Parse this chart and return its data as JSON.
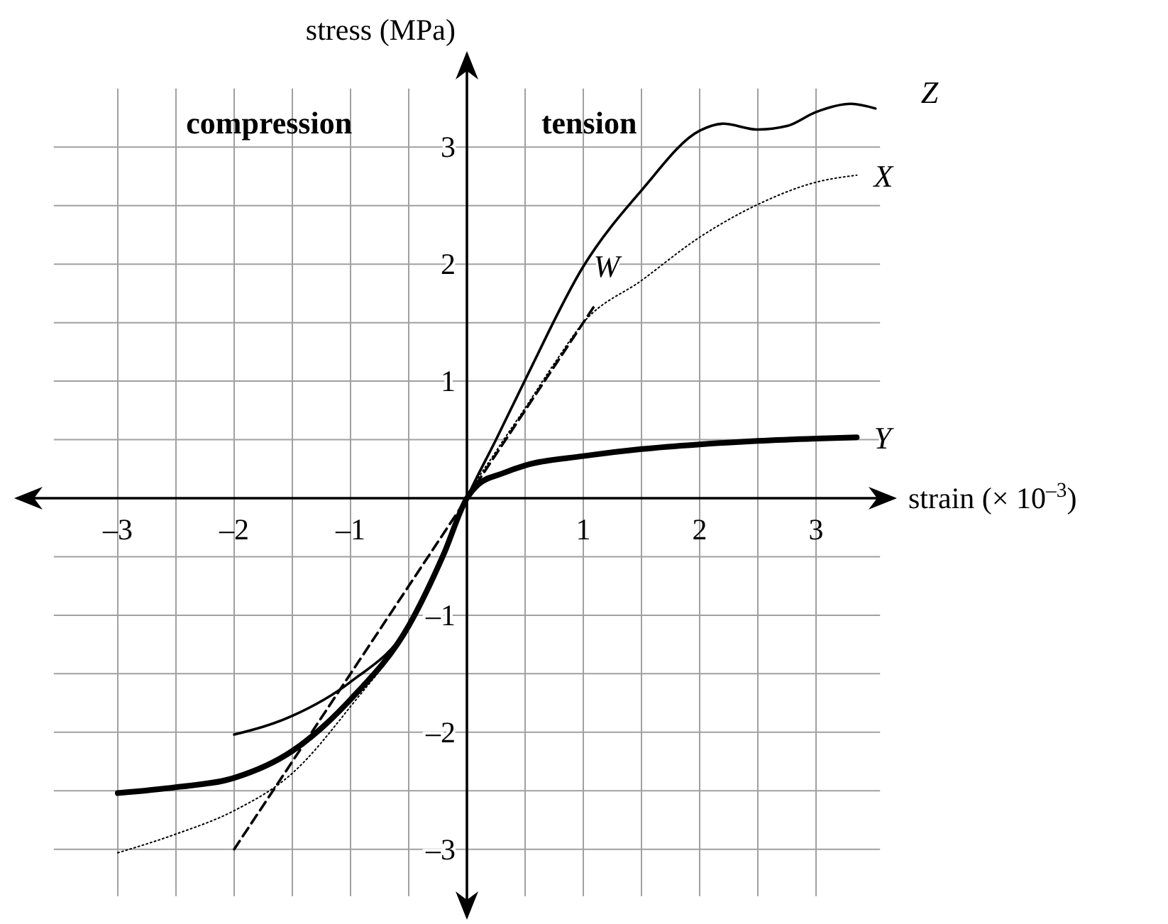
{
  "chart_data": {
    "type": "line",
    "xlabel": "strain (× 10$^{–3}$)",
    "ylabel": "stress (MPa)",
    "annotations": [
      "compression",
      "tension"
    ],
    "xlim": [
      -3.55,
      3.55
    ],
    "ylim": [
      -3.4,
      3.5
    ],
    "xticks": [
      {
        "value": -3,
        "label": "–3"
      },
      {
        "value": -2.5,
        "label": null
      },
      {
        "value": -2,
        "label": "–2"
      },
      {
        "value": -1.5,
        "label": null
      },
      {
        "value": -1,
        "label": "–1"
      },
      {
        "value": -0.5,
        "label": null
      },
      {
        "value": 0.5,
        "label": null
      },
      1,
      {
        "value": 1.5,
        "label": null
      },
      2,
      {
        "value": 2.5,
        "label": null
      },
      3
    ],
    "yticks": [
      {
        "value": -3,
        "label": "–3"
      },
      {
        "value": -2.5,
        "label": null
      },
      {
        "value": -2,
        "label": "–2"
      },
      {
        "value": -1.5,
        "label": null
      },
      {
        "value": -1,
        "label": "–1"
      },
      {
        "value": -0.5,
        "label": null
      },
      {
        "value": 0.5,
        "label": null
      },
      1,
      {
        "value": 1.5,
        "label": null
      },
      2,
      {
        "value": 2.5,
        "label": null
      },
      3
    ],
    "grid": true,
    "series": [
      {
        "name": "W",
        "color": "#000000",
        "line_style": "dashed",
        "x": [
          -2,
          0,
          1.1
        ],
        "values": [
          -3,
          0,
          1.65
        ]
      },
      {
        "name": "X",
        "color": "#000000",
        "line_style": "dotted",
        "x": [
          -3,
          -2.5,
          -2,
          -1.5,
          -1,
          -0.5,
          -0.2,
          0,
          0.25,
          0.5,
          0.75,
          1,
          1.5,
          2,
          2.5,
          3,
          3.35
        ],
        "values": [
          -3.03,
          -2.87,
          -2.67,
          -2.35,
          -1.78,
          -1.1,
          -0.48,
          0,
          0.4,
          0.77,
          1.15,
          1.5,
          1.86,
          2.23,
          2.51,
          2.7,
          2.76
        ]
      },
      {
        "name": "Y",
        "color": "#000000",
        "line_style": "solid",
        "x": [
          -3,
          -2.5,
          -2,
          -1.5,
          -1,
          -0.5,
          -0.2,
          0,
          0.1,
          0.3,
          0.5,
          1,
          1.5,
          2,
          2.5,
          3,
          3.35
        ],
        "values": [
          -2.52,
          -2.47,
          -2.39,
          -2.16,
          -1.72,
          -1.09,
          -0.48,
          0,
          0.12,
          0.21,
          0.28,
          0.36,
          0.42,
          0.46,
          0.49,
          0.51,
          0.52
        ]
      },
      {
        "name": "Z",
        "color": "#000000",
        "line_style": "solid",
        "x": [
          -2,
          -1.5,
          -1,
          -0.5,
          -0.2,
          0,
          0.25,
          0.5,
          1,
          1.5,
          2,
          2.2,
          2.5,
          2.75,
          3,
          3.3,
          3.51
        ],
        "values": [
          -2.02,
          -1.86,
          -1.57,
          -1.09,
          -0.48,
          0,
          0.5,
          1.01,
          1.98,
          2.63,
          3.14,
          3.2,
          3.15,
          3.18,
          3.3,
          3.37,
          3.33
        ]
      }
    ]
  }
}
